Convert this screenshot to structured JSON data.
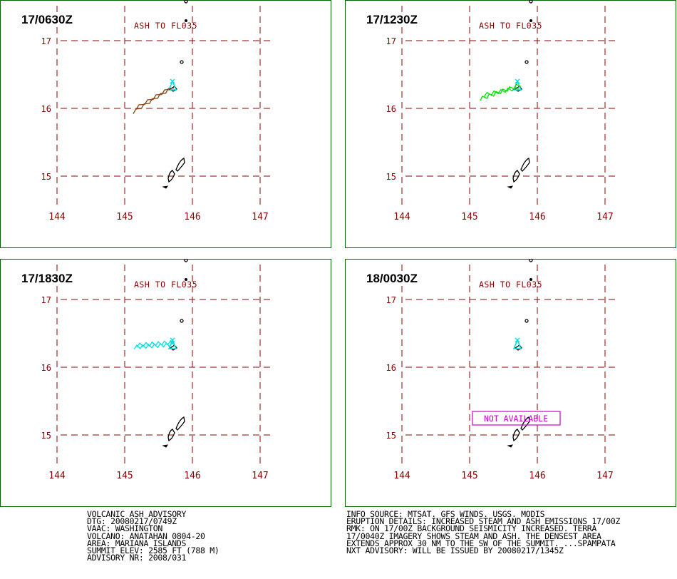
{
  "panels": [
    {
      "time": "17/0630Z",
      "label": "ASH TO FL035",
      "plume": "brown",
      "status": ""
    },
    {
      "time": "17/1230Z",
      "label": "ASH TO FL035",
      "plume": "green",
      "status": ""
    },
    {
      "time": "17/1830Z",
      "label": "ASH TO FL035",
      "plume": "cyan",
      "status": ""
    },
    {
      "time": "18/0030Z",
      "label": "ASH TO FL035",
      "plume": "none",
      "status": "NOT AVAILABLE"
    }
  ],
  "axes": {
    "lat_labels": [
      "17",
      "16",
      "15"
    ],
    "lon_labels": [
      "144",
      "145",
      "146",
      "147"
    ]
  },
  "colors": {
    "frame": "#006400",
    "grid": "#8b0000",
    "brown": "#8b4513",
    "green": "#00e000",
    "cyan": "#00e0e0",
    "magenta": "#cc00cc"
  },
  "advisory_left": [
    "VOLCANIC ASH ADVISORY",
    "DTG: 20080217/0749Z",
    "VAAC: WASHINGTON",
    "VOLCANO: ANATAHAN 0804-20",
    "AREA: MARIANA ISLANDS",
    "SUMMIT ELEV: 2585 FT (788 M)",
    "ADVISORY NR: 2008/031"
  ],
  "advisory_right": [
    "INFO SOURCE: MTSAT. GFS WINDS. USGS. MODIS",
    "ERUPTION DETAILS: INCREASED STEAM AND ASH EMISSIONS 17/00Z",
    "RMK: ON 17/00Z BACKGROUND SEISMICITY INCREASED. TERRA",
    "17/0040Z IMAGERY SHOWS STEAM AND ASH. THE DENSEST AREA",
    "EXTENDS APPROX 30 NM TO THE SW OF THE SUMMIT. ...SPAMPATA",
    "NXT ADVISORY: WILL BE ISSUED BY 20080217/1345Z"
  ]
}
